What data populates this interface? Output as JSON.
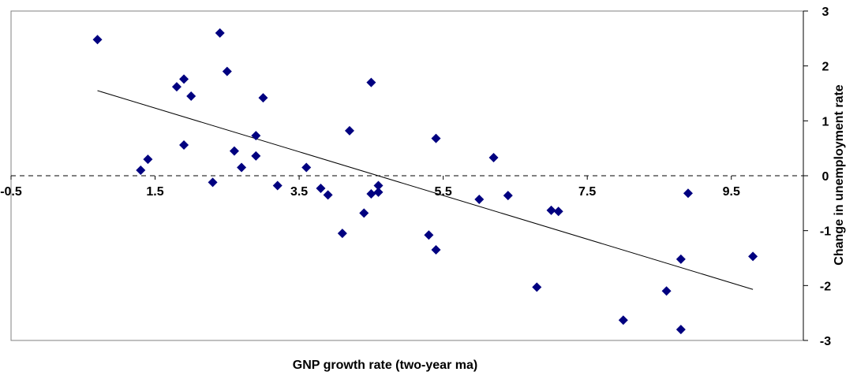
{
  "chart_data": {
    "type": "scatter",
    "title": "",
    "xlabel": "GNP growth rate (two-year ma)",
    "ylabel": "Change in unemployment rate",
    "xlim": [
      -0.5,
      10.5
    ],
    "ylim": [
      -3,
      3
    ],
    "x_ticks": [
      -0.5,
      1.5,
      3.5,
      5.5,
      7.5,
      9.5
    ],
    "x_tick_labels": [
      "-0.5",
      "1.5",
      "3.5",
      "5.5",
      "7.5",
      "9.5"
    ],
    "y_ticks": [
      3,
      2,
      1,
      0,
      -1,
      -2,
      -3
    ],
    "y_tick_labels": [
      "3",
      "2",
      "1",
      "0",
      "-1",
      "-2",
      "-3"
    ],
    "y_axis_position": "right",
    "x_axis_crosses_at": 0,
    "grid": false,
    "point_color": "#000080",
    "marker": "diamond",
    "reference_line": {
      "y": 0,
      "style": "dashed",
      "color": "#000000"
    },
    "trendline": {
      "type": "linear",
      "x_start": 0.7,
      "y_start": 1.55,
      "x_end": 9.8,
      "y_end": -2.07,
      "color": "#000000"
    },
    "series": [
      {
        "x": [
          0.7,
          2.4,
          1.8,
          1.9,
          2.5,
          2.0,
          3.0,
          4.5,
          2.9,
          1.9,
          2.6,
          4.2,
          5.4,
          6.2,
          1.4,
          1.3,
          2.7,
          3.6,
          2.9,
          2.3,
          3.2,
          4.6,
          3.8,
          3.9,
          4.6,
          4.5,
          6.0,
          6.4,
          4.4,
          7.0,
          7.1,
          4.1,
          5.3,
          5.4,
          6.8,
          8.8,
          9.8,
          8.0,
          8.6,
          8.8,
          8.9
        ],
        "y": [
          2.48,
          2.6,
          1.62,
          1.76,
          1.9,
          1.45,
          1.42,
          1.7,
          0.73,
          0.56,
          0.45,
          0.82,
          0.68,
          0.33,
          0.3,
          0.1,
          0.15,
          0.15,
          0.36,
          -0.12,
          -0.18,
          -0.18,
          -0.23,
          -0.35,
          -0.3,
          -0.33,
          -0.43,
          -0.36,
          -0.68,
          -0.63,
          -0.65,
          -1.05,
          -1.08,
          -1.35,
          -2.03,
          -1.52,
          -1.47,
          -2.63,
          -2.1,
          -2.8,
          -0.32
        ]
      }
    ]
  }
}
